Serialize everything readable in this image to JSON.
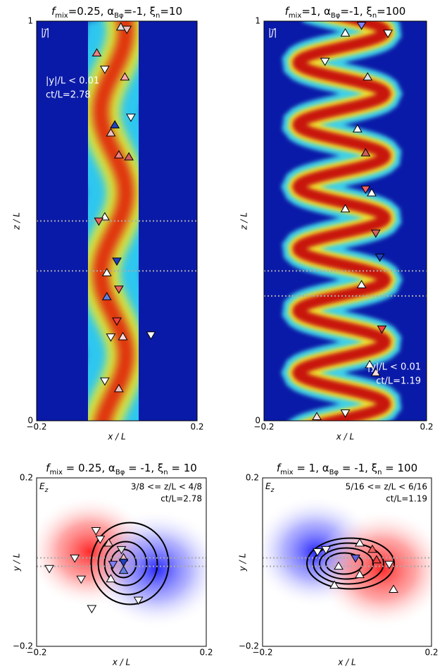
{
  "chart_data": [
    {
      "type": "current-map",
      "title_parts": [
        "f",
        "mix",
        "=0.25, α",
        "Bφ",
        "=-1, ξ",
        "n",
        "=10"
      ],
      "field_label": [
        "|j⃗|"
      ],
      "annotations": [
        "|y|/L < 0.01",
        "ct/L=2.78"
      ],
      "xlabel": "x / L",
      "ylabel": "z / L",
      "xlim": [
        -0.2,
        0.2
      ],
      "xticks": [
        {
          "value": -0.2,
          "label": "−0.2"
        },
        0.2
      ],
      "ylim": [
        0,
        1
      ],
      "yticks": [
        0,
        1
      ],
      "hlines": [
        0.375,
        0.5
      ],
      "points": {
        "x": [
          0.01,
          0.025,
          -0.05,
          -0.03,
          0.02,
          -0.005,
          -0.015,
          0.035,
          0.03,
          0.005,
          -0.03,
          -0.045,
          0.0,
          -0.025,
          0.005,
          -0.025,
          0.0,
          -0.015,
          0.015,
          0.085,
          -0.03,
          0.005
        ],
        "y": [
          0.985,
          0.98,
          0.92,
          0.88,
          0.86,
          0.74,
          0.72,
          0.76,
          0.66,
          0.665,
          0.51,
          0.5,
          0.4,
          0.37,
          0.33,
          0.31,
          0.25,
          0.21,
          0.21,
          0.215,
          0.1,
          0.08
        ],
        "markers": [
          "^",
          "v",
          "^",
          "v",
          "^",
          "^",
          "^",
          "v",
          "^",
          "^",
          "^",
          "v",
          "v",
          "^",
          "v",
          "^",
          "v",
          "v",
          "^",
          "v",
          "v",
          "^"
        ],
        "colors": [
          "#dddddd",
          "#f0c0c0",
          "#f08080",
          "#ffffff",
          "#ffaaaa",
          "#2040c0",
          "#f0c0c0",
          "#ffffff",
          "#d06060",
          "#f08080",
          "#ffffff",
          "#f06060",
          "#2040c0",
          "#ffffff",
          "#f06060",
          "#6080e0",
          "#f04040",
          "#ffffff",
          "#ffdddd",
          "#ffffff",
          "#ffffff",
          "#f0c0c0"
        ]
      }
    },
    {
      "type": "current-map",
      "title_parts": [
        "f",
        "mix",
        "=1, α",
        "Bφ",
        "=-1, ξ",
        "n",
        "=100"
      ],
      "field_label": [
        "|j⃗|"
      ],
      "annotations": [
        "|y|/L < 0.01",
        "ct/L=1.19"
      ],
      "xlabel": "x / L",
      "ylabel": "z / L",
      "xlim": [
        -0.2,
        0.2
      ],
      "xticks": [
        {
          "value": -0.2,
          "label": "−0.2"
        },
        0.2
      ],
      "ylim": [
        0,
        1
      ],
      "yticks": [
        0,
        1
      ],
      "hlines": [
        0.3125,
        0.375
      ],
      "points": {
        "x": [
          0.0,
          0.04,
          0.105,
          -0.05,
          0.055,
          0.03,
          0.05,
          0.05,
          0.065,
          0.0,
          0.075,
          0.085,
          0.04,
          0.09,
          0.06,
          0.075,
          0.0,
          -0.07
        ],
        "y": [
          0.97,
          0.99,
          0.97,
          0.9,
          0.86,
          0.73,
          0.67,
          0.58,
          0.57,
          0.53,
          0.47,
          0.41,
          0.34,
          0.23,
          0.14,
          0.12,
          0.02,
          0.01
        ],
        "markers": [
          "^",
          "v",
          "v",
          "v",
          "^",
          "^",
          "^",
          "v",
          "^",
          "^",
          "v",
          "v",
          "^",
          "v",
          "^",
          "^",
          "v",
          "^"
        ],
        "colors": [
          "#ffffff",
          "#8080ff",
          "#ffffff",
          "#ffffff",
          "#dddddd",
          "#ffffff",
          "#d06060",
          "#f06060",
          "#ffffff",
          "#ffffff",
          "#d06060",
          "#2040c0",
          "#ffffff",
          "#f04040",
          "#ffffff",
          "#ffdddd",
          "#ffffff",
          "#ffdddd"
        ]
      }
    },
    {
      "type": "field-map",
      "title_parts": [
        "f",
        "mix",
        " = 0.25, α",
        "Bφ",
        " = -1, ξ",
        "n",
        " = 10"
      ],
      "field_label": [
        "E",
        "z"
      ],
      "annotations": [
        "3/8 <= z/L < 4/8",
        "ct/L=2.78"
      ],
      "xlabel": "x / L",
      "ylabel": "y / L",
      "xlim": [
        -0.2,
        0.2
      ],
      "xticks": [
        {
          "value": -0.2,
          "label": "−0.2"
        },
        0.2
      ],
      "ylim": [
        -0.2,
        0.2
      ],
      "yticks": [
        {
          "value": -0.2,
          "label": "−0.2"
        },
        0.2
      ],
      "hlines": [
        -0.01,
        0.01
      ],
      "points": {
        "x": [
          -0.05,
          0.0,
          -0.03,
          0.005,
          0.005,
          -0.02,
          0.005,
          -0.11,
          -0.095,
          -0.17,
          -0.025,
          0.04,
          -0.07,
          -0.06
        ],
        "y": [
          0.055,
          0.03,
          0.045,
          0.01,
          0.0,
          -0.005,
          -0.02,
          0.01,
          -0.04,
          -0.015,
          -0.04,
          -0.09,
          -0.11,
          0.075
        ],
        "markers": [
          "v",
          "v",
          "^",
          "^",
          "v",
          "v",
          "^",
          "v",
          "v",
          "v",
          "^",
          "v",
          "v",
          "v"
        ],
        "colors": [
          "#ffffff",
          "#dddddd",
          "#ffc0c0",
          "#f0c0c0",
          "#2040c0",
          "#8080ff",
          "#6080e0",
          "#ffffff",
          "#ffffff",
          "#ffffff",
          "#ffffff",
          "#ffffff",
          "#ffffff",
          "#ffffff"
        ]
      }
    },
    {
      "type": "field-map",
      "title_parts": [
        "f",
        "mix",
        " = 1, α",
        "Bφ",
        " = -1, ξ",
        "n",
        " = 100"
      ],
      "field_label": [
        "E",
        "z"
      ],
      "annotations": [
        "5/16 <= z/L < 6/16",
        "ct/L=1.19"
      ],
      "xlabel": "x / L",
      "ylabel": "y / L",
      "xlim": [
        -0.2,
        0.2
      ],
      "xticks": [
        {
          "value": -0.2,
          "label": "−0.2"
        },
        0.2
      ],
      "ylim": [
        -0.2,
        0.2
      ],
      "yticks": [
        {
          "value": -0.2,
          "label": "−0.2"
        },
        0.2
      ],
      "hlines": [
        -0.01,
        0.01
      ],
      "points": {
        "x": [
          -0.05,
          0.03,
          0.06,
          0.07,
          0.02,
          -0.02,
          0.03,
          0.1,
          -0.03,
          0.11,
          -0.07
        ],
        "y": [
          0.03,
          0.045,
          0.03,
          0.005,
          0.01,
          -0.01,
          -0.03,
          -0.005,
          -0.055,
          -0.065,
          0.025
        ],
        "markers": [
          "v",
          "^",
          "^",
          "^",
          "v",
          "^",
          "^",
          "v",
          "^",
          "^",
          "v"
        ],
        "colors": [
          "#ffffff",
          "#ffffff",
          "#f06060",
          "#f04040",
          "#6060e0",
          "#ffffff",
          "#ffffff",
          "#ffffff",
          "#ffffff",
          "#ffffff",
          "#ffffff"
        ]
      }
    }
  ]
}
